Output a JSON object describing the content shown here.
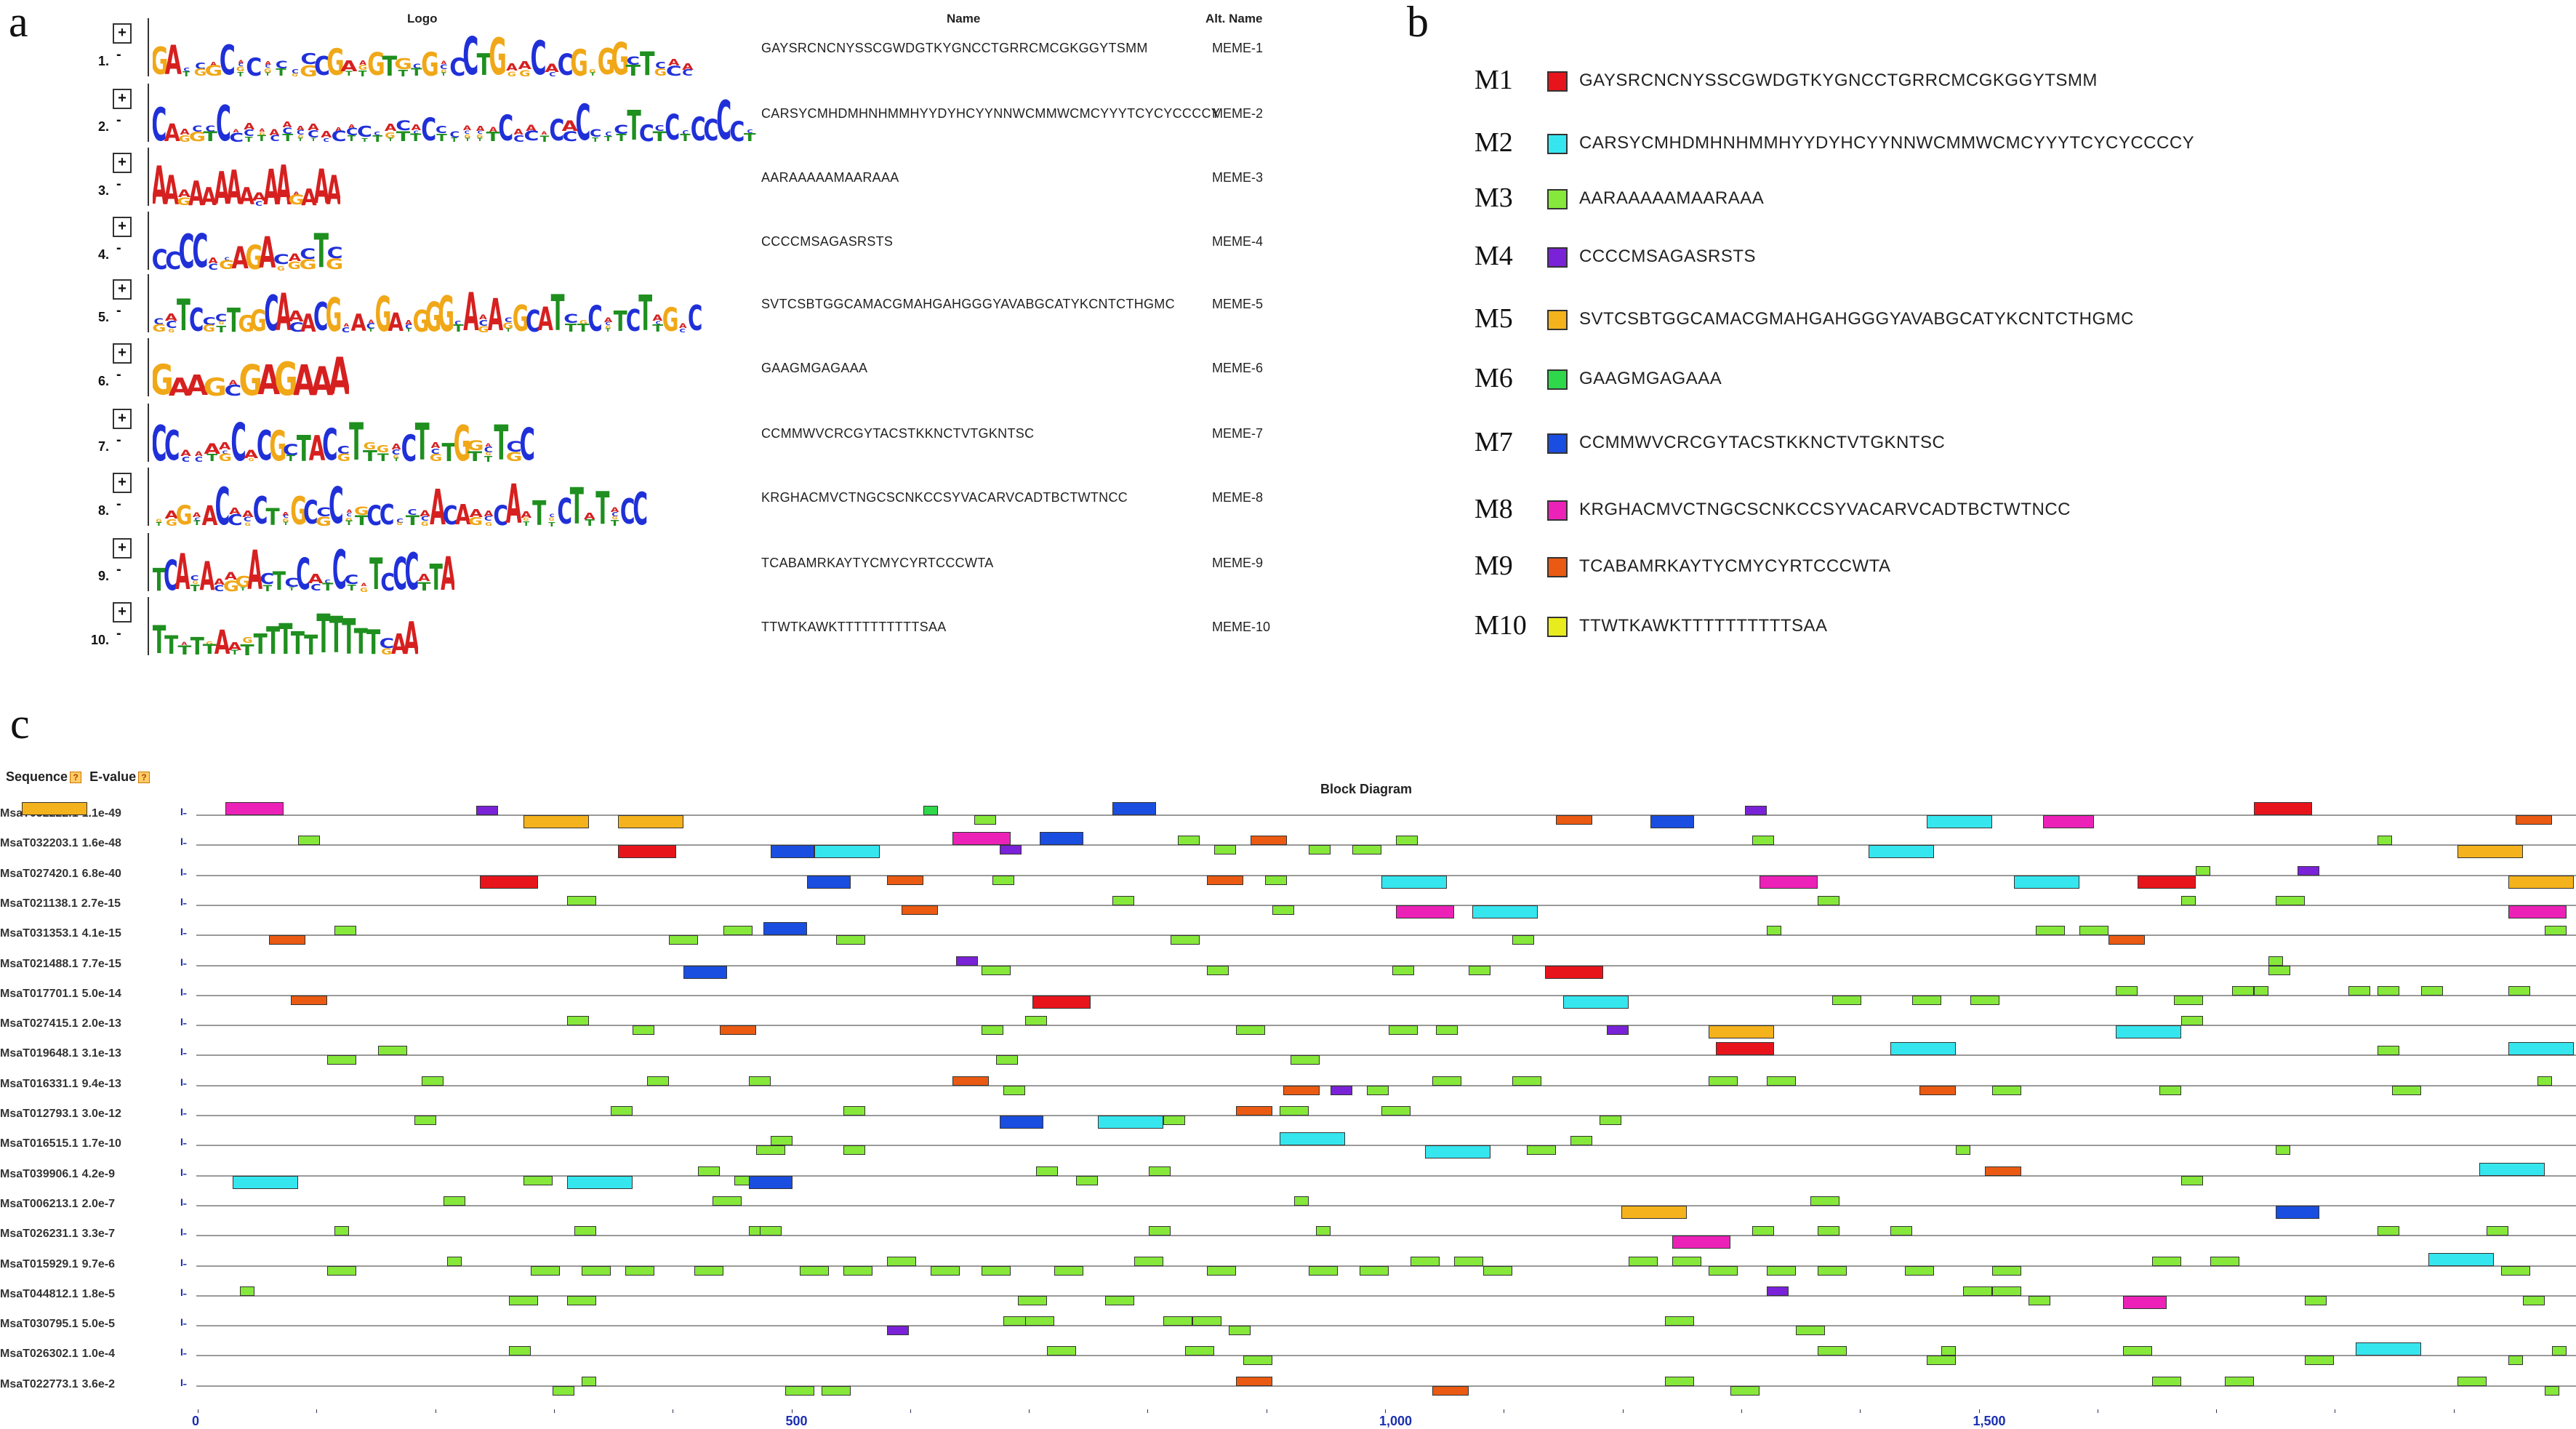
{
  "panels": {
    "a": "a",
    "b": "b",
    "c": "c"
  },
  "panel_a": {
    "headers": {
      "logo": "Logo",
      "name": "Name",
      "alt": "Alt. Name"
    },
    "rows": [
      {
        "num": "1.",
        "name": "GAYSRCNCNYSSCGWDGTKYGNCCTGRRCMCGKGGYTSMM",
        "alt": "MEME-1",
        "logo": "GAYSRCNCNYSSCGWDGTKYGNCCTGRRCMCGKGGYTSMM"
      },
      {
        "num": "2.",
        "name": "CARSYCMHDMHNHMMHYYDYHCYYNNWCMMWCMCYYYTCYCYCCCCY",
        "alt": "MEME-2",
        "logo": "CARSYCMHDMHNHMMHYYDYHCYYNNWCMMWCMCYYYTCYCYCCCCY"
      },
      {
        "num": "3.",
        "name": "AARAAAAAMAARAAA",
        "alt": "MEME-3",
        "logo": "AARAAAAAMAARAAA"
      },
      {
        "num": "4.",
        "name": "CCCCMSAGASRSTS",
        "alt": "MEME-4",
        "logo": "CCCCMSAGASRSTS"
      },
      {
        "num": "5.",
        "name": "SVTCSBTGGCAMACGMAHGAHGGGYAVABGCATYKCNTCTHGMC",
        "alt": "MEME-5",
        "logo": "SVTCSBTGGCAMACGMAHGAHGGGYAVABGCATYKCNTCTHGMC"
      },
      {
        "num": "6.",
        "name": "GAAGMGAGAAA",
        "alt": "MEME-6",
        "logo": "GAAGMGAGAAA"
      },
      {
        "num": "7.",
        "name": "CCMMWVCRCGYTACSTKKNCTVTGKNTSC",
        "alt": "MEME-7",
        "logo": "CCMMWVCRCGYTACSTKKNCTVTGKNTSC"
      },
      {
        "num": "8.",
        "name": "KRGHACMVCTNGCSCNKCCSYVACARVCADTBCTWTNCC",
        "alt": "MEME-8",
        "logo": "KRGHACMVCTNGCSCNKCCSYVACARVCADTBCTWTNCC"
      },
      {
        "num": "9.",
        "name": "TCABAMRKAYTYCMYCYRTCCCWTA",
        "alt": "MEME-9",
        "logo": "TCABAMRKAYTYCMYCYRTCCCWTA"
      },
      {
        "num": "10.",
        "name": "TTWTKAWKTTTTTTTTTTSAA",
        "alt": "MEME-10",
        "logo": "TTWTKAWKTTTTTTTTTTSAA"
      }
    ]
  },
  "panel_b": {
    "motifs": [
      {
        "label": "M1",
        "color": "#e8141c",
        "seq": "GAYSRCNCNYSSCGWDGTKYGNCCTGRRCMCGKGGYTSMM"
      },
      {
        "label": "M2",
        "color": "#36e6ee",
        "seq": "CARSYCMHDMHNHMMHYYDYHCYYNNWCMMWCMCYYYTCYCYCCCCY"
      },
      {
        "label": "M3",
        "color": "#86e83a",
        "seq": "AARAAAAAMAARAAA"
      },
      {
        "label": "M4",
        "color": "#7a22d8",
        "seq": "CCCCMSAGASRSTS"
      },
      {
        "label": "M5",
        "color": "#f4b21c",
        "seq": "SVTCSBTGGCAMACGMAHGAHGGGYAVABGCATYKCNTCTHGMC"
      },
      {
        "label": "M6",
        "color": "#2ed84a",
        "seq": "GAAGMGAGAAA"
      },
      {
        "label": "M7",
        "color": "#1a4ee0",
        "seq": "CCMMWVCRCGYTACSTKKNCTVTGKNTSC"
      },
      {
        "label": "M8",
        "color": "#ec22b8",
        "seq": "KRGHACMVCTNGCSCNKCCSYVACARVCADTBCTWTNCC"
      },
      {
        "label": "M9",
        "color": "#ea5a12",
        "seq": "TCABAMRKAYTYCMYCYRTCCCWTA"
      },
      {
        "label": "M10",
        "color": "#e8ec1c",
        "seq": "TTWTKAWKTTTTTTTTTTSAA"
      }
    ]
  },
  "panel_c": {
    "headers": {
      "sequence": "Sequence",
      "evalue": "E-value",
      "block": "Block Diagram",
      "help": "?"
    },
    "axis_ticks": [
      {
        "value": 0,
        "label": "0"
      },
      {
        "value": 500,
        "label": "500"
      },
      {
        "value": 1000,
        "label": "1,000"
      },
      {
        "value": 1500,
        "label": "1,500"
      }
    ],
    "axis_max": 2000,
    "sequences": [
      {
        "name": "MsaT032222.1",
        "evalue": "1.1e-49"
      },
      {
        "name": "MsaT032203.1",
        "evalue": "1.6e-48"
      },
      {
        "name": "MsaT027420.1",
        "evalue": "6.8e-40"
      },
      {
        "name": "MsaT021138.1",
        "evalue": "2.7e-15"
      },
      {
        "name": "MsaT031353.1",
        "evalue": "4.1e-15"
      },
      {
        "name": "MsaT021488.1",
        "evalue": "7.7e-15"
      },
      {
        "name": "MsaT017701.1",
        "evalue": "5.0e-14"
      },
      {
        "name": "MsaT027415.1",
        "evalue": "2.0e-13"
      },
      {
        "name": "MsaT019648.1",
        "evalue": "3.1e-13"
      },
      {
        "name": "MsaT016331.1",
        "evalue": "9.4e-13"
      },
      {
        "name": "MsaT012793.1",
        "evalue": "3.0e-12"
      },
      {
        "name": "MsaT016515.1",
        "evalue": "1.7e-10"
      },
      {
        "name": "MsaT039906.1",
        "evalue": "4.2e-9"
      },
      {
        "name": "MsaT006213.1",
        "evalue": "2.0e-7"
      },
      {
        "name": "MsaT026231.1",
        "evalue": "3.3e-7"
      },
      {
        "name": "MsaT015929.1",
        "evalue": "9.7e-6"
      },
      {
        "name": "MsaT044812.1",
        "evalue": "1.8e-5"
      },
      {
        "name": "MsaT030795.1",
        "evalue": "5.0e-5"
      },
      {
        "name": "MsaT026302.1",
        "evalue": "1.0e-4"
      },
      {
        "name": "MsaT022773.1",
        "evalue": "3.6e-2"
      }
    ]
  }
}
